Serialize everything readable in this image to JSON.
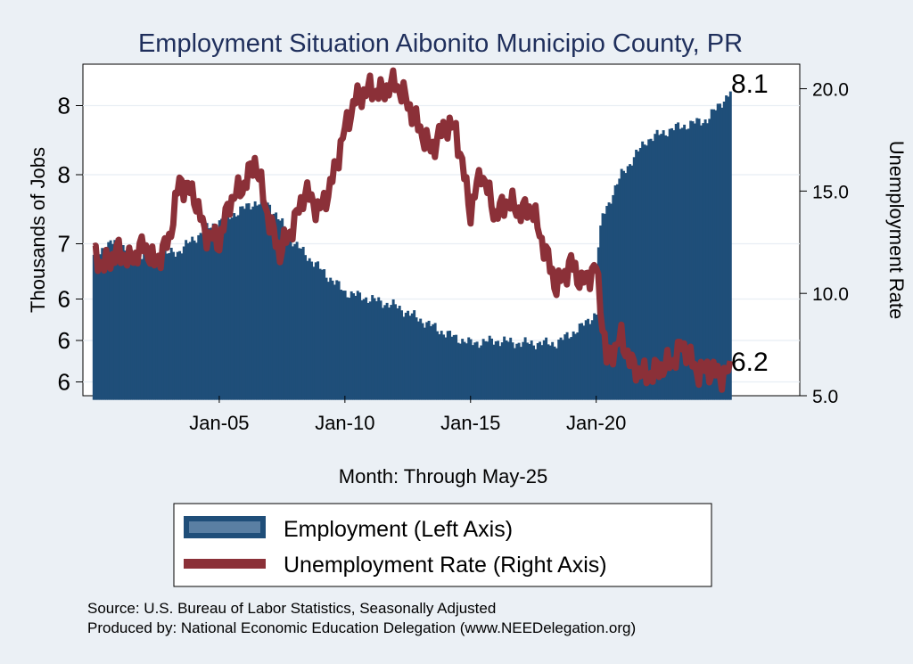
{
  "chart_data": {
    "type": "bar+line",
    "title": "Employment Situation Aibonito Municipio  County, PR",
    "xlabel": "Month: Through May-25",
    "ylabel_left": "Thousands of Jobs",
    "ylabel_right": "Unemployment Rate",
    "x_ticks": [
      "Jan-05",
      "Jan-10",
      "Jan-15",
      "Jan-20"
    ],
    "y_left_ticks": [
      "6",
      "6",
      "6",
      "7",
      "8",
      "8"
    ],
    "y_right_ticks": [
      "5.0",
      "10.0",
      "15.0",
      "20.0"
    ],
    "y_left_range": [
      5.9,
      8.3
    ],
    "y_right_range": [
      5.0,
      21.2
    ],
    "x_start": "Jan-00",
    "x_end": "May-25",
    "end_labels": {
      "employment": "8.1",
      "unemployment": "6.2"
    },
    "series": [
      {
        "name": "Employment (Left Axis)",
        "axis": "left",
        "style": "bar",
        "color": "#1f4e79",
        "keypoints": [
          [
            "2000-01",
            6.9
          ],
          [
            "2000-06",
            6.98
          ],
          [
            "2001-01",
            7.02
          ],
          [
            "2001-06",
            6.93
          ],
          [
            "2002-06",
            6.9
          ],
          [
            "2003-06",
            6.95
          ],
          [
            "2004-06",
            7.1
          ],
          [
            "2005-06",
            7.2
          ],
          [
            "2006-06",
            7.3
          ],
          [
            "2007-01",
            7.28
          ],
          [
            "2008-01",
            7.0
          ],
          [
            "2009-01",
            6.82
          ],
          [
            "2010-01",
            6.65
          ],
          [
            "2011-01",
            6.6
          ],
          [
            "2012-01",
            6.55
          ],
          [
            "2013-01",
            6.45
          ],
          [
            "2014-01",
            6.35
          ],
          [
            "2015-01",
            6.28
          ],
          [
            "2016-01",
            6.3
          ],
          [
            "2017-01",
            6.28
          ],
          [
            "2018-06",
            6.28
          ],
          [
            "2019-06",
            6.4
          ],
          [
            "2020-01",
            6.5
          ],
          [
            "2020-02",
            6.98
          ],
          [
            "2020-04",
            7.2
          ],
          [
            "2021-01",
            7.5
          ],
          [
            "2022-01",
            7.75
          ],
          [
            "2023-01",
            7.83
          ],
          [
            "2024-06",
            7.9
          ],
          [
            "2025-05",
            8.1
          ]
        ]
      },
      {
        "name": "Unemployment Rate (Right Axis)",
        "axis": "right",
        "style": "line",
        "color": "#8b3038",
        "keypoints": [
          [
            "2000-01",
            12.0
          ],
          [
            "2000-06",
            11.3
          ],
          [
            "2001-01",
            12.1
          ],
          [
            "2001-06",
            11.5
          ],
          [
            "2002-01",
            12.4
          ],
          [
            "2002-06",
            11.4
          ],
          [
            "2003-01",
            12.6
          ],
          [
            "2003-06",
            15.5
          ],
          [
            "2004-01",
            14.8
          ],
          [
            "2004-06",
            13.0
          ],
          [
            "2005-01",
            12.5
          ],
          [
            "2005-06",
            14.5
          ],
          [
            "2006-01",
            15.3
          ],
          [
            "2006-06",
            16.5
          ],
          [
            "2007-01",
            13.5
          ],
          [
            "2007-06",
            12.0
          ],
          [
            "2008-01",
            13.5
          ],
          [
            "2008-06",
            15.0
          ],
          [
            "2009-01",
            14.0
          ],
          [
            "2009-06",
            15.2
          ],
          [
            "2010-01",
            18.0
          ],
          [
            "2010-06",
            19.5
          ],
          [
            "2011-01",
            20.0
          ],
          [
            "2011-06",
            19.8
          ],
          [
            "2012-01",
            20.3
          ],
          [
            "2012-06",
            19.5
          ],
          [
            "2013-01",
            18.0
          ],
          [
            "2013-06",
            17.0
          ],
          [
            "2014-01",
            18.2
          ],
          [
            "2014-06",
            18.0
          ],
          [
            "2015-01",
            14.0
          ],
          [
            "2015-06",
            16.0
          ],
          [
            "2016-01",
            13.8
          ],
          [
            "2016-06",
            14.5
          ],
          [
            "2017-01",
            14.0
          ],
          [
            "2017-06",
            14.2
          ],
          [
            "2018-01",
            12.0
          ],
          [
            "2018-06",
            10.3
          ],
          [
            "2019-01",
            11.5
          ],
          [
            "2019-06",
            10.5
          ],
          [
            "2020-01",
            11.3
          ],
          [
            "2020-06",
            6.8
          ],
          [
            "2021-01",
            7.8
          ],
          [
            "2021-06",
            6.5
          ],
          [
            "2022-01",
            5.9
          ],
          [
            "2022-06",
            6.3
          ],
          [
            "2023-01",
            6.6
          ],
          [
            "2023-06",
            7.5
          ],
          [
            "2024-01",
            6.2
          ],
          [
            "2024-06",
            6.3
          ],
          [
            "2025-01",
            6.0
          ],
          [
            "2025-05",
            6.2
          ]
        ]
      }
    ],
    "legend": {
      "placement": "bottom",
      "items": [
        "Employment (Left Axis)",
        "Unemployment Rate (Right Axis)"
      ]
    },
    "grid": true
  },
  "notes": {
    "source": "Source: U.S. Bureau of Labor Statistics, Seasonally Adjusted",
    "produced_by": "Produced by: National Economic Education Delegation (www.NEEDelegation.org)"
  }
}
